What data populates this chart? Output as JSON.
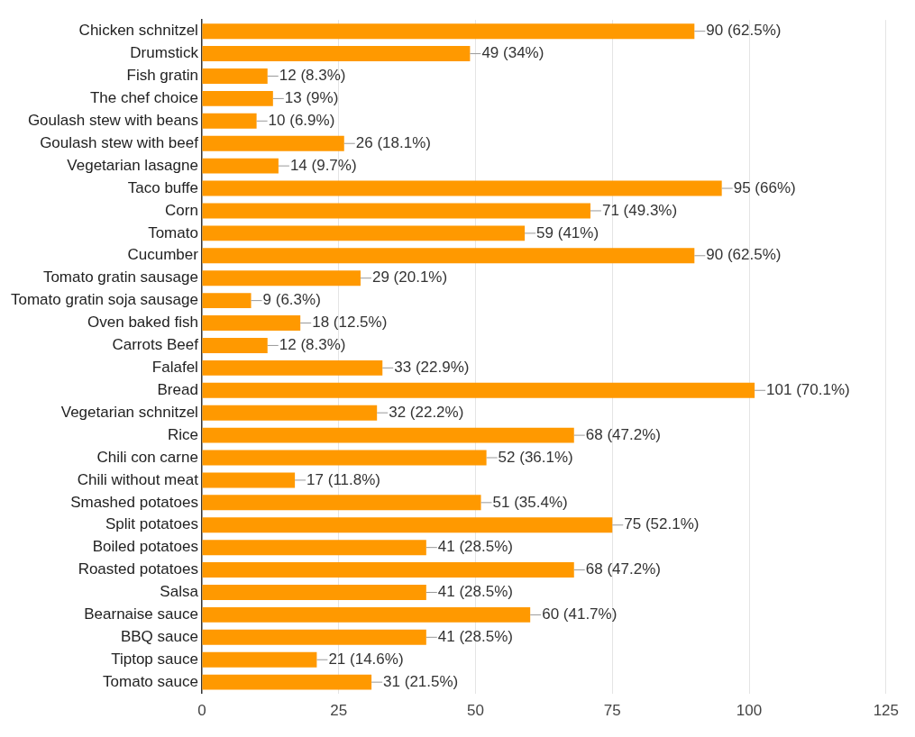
{
  "chart_data": {
    "type": "bar",
    "orientation": "horizontal",
    "categories": [
      "Chicken schnitzel",
      "Drumstick",
      "Fish gratin",
      "The chef choice",
      "Goulash stew with beans",
      "Goulash stew with beef",
      "Vegetarian lasagne",
      "Taco buffe",
      "Corn",
      "Tomato",
      "Cucumber",
      "Tomato gratin sausage",
      "Tomato gratin soja sausage",
      "Oven baked fish",
      "Carrots Beef",
      "Falafel",
      "Bread",
      "Vegetarian schnitzel",
      "Rice",
      "Chili con carne",
      "Chili without meat",
      "Smashed potatoes",
      "Split potatoes",
      "Boiled potatoes",
      "Roasted potatoes",
      "Salsa",
      "Bearnaise sauce",
      "BBQ sauce",
      "Tiptop sauce",
      "Tomato sauce"
    ],
    "values": [
      90,
      49,
      12,
      13,
      10,
      26,
      14,
      95,
      71,
      59,
      90,
      29,
      9,
      18,
      12,
      33,
      101,
      32,
      68,
      52,
      17,
      51,
      75,
      41,
      68,
      41,
      60,
      41,
      21,
      31
    ],
    "value_labels": [
      "90 (62.5%)",
      "49 (34%)",
      "12 (8.3%)",
      "13 (9%)",
      "10 (6.9%)",
      "26 (18.1%)",
      "14 (9.7%)",
      "95 (66%)",
      "71 (49.3%)",
      "59 (41%)",
      "90 (62.5%)",
      "29 (20.1%)",
      "9 (6.3%)",
      "18 (12.5%)",
      "12 (8.3%)",
      "33 (22.9%)",
      "101 (70.1%)",
      "32 (22.2%)",
      "68 (47.2%)",
      "52 (36.1%)",
      "17 (11.8%)",
      "51 (35.4%)",
      "75 (52.1%)",
      "41 (28.5%)",
      "68 (47.2%)",
      "41 (28.5%)",
      "60 (41.7%)",
      "41 (28.5%)",
      "21 (14.6%)",
      "31 (21.5%)"
    ],
    "color": "#ff9900",
    "xlim": [
      0,
      125
    ],
    "xticks": [
      0,
      25,
      50,
      75,
      100,
      125
    ],
    "grid": "x",
    "legend": false
  }
}
